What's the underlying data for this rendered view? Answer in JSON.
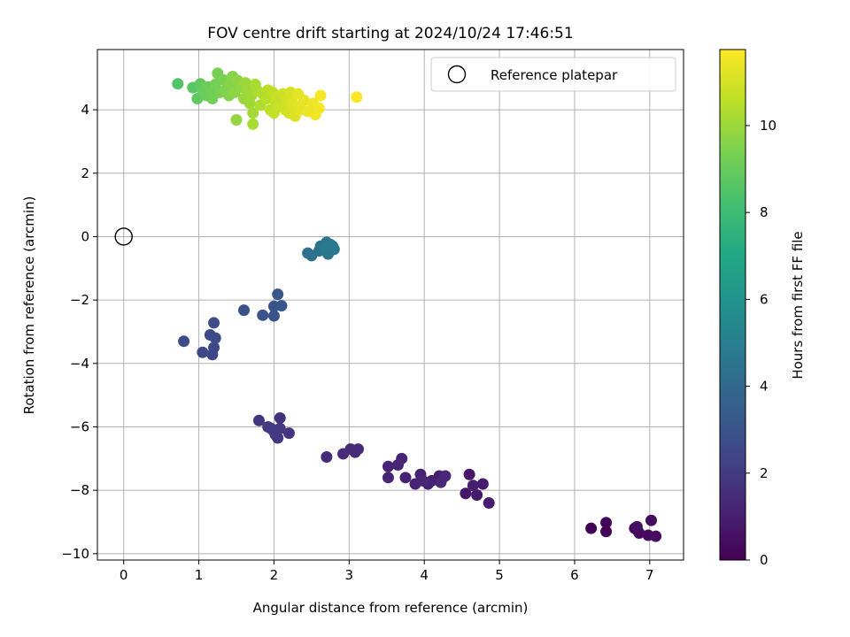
{
  "chart_data": {
    "type": "scatter",
    "title": "FOV centre drift starting at 2024/10/24 17:46:51",
    "xlabel": "Angular distance from reference (arcmin)",
    "ylabel": "Rotation from reference (arcmin)",
    "xlim": [
      -0.35,
      7.45
    ],
    "ylim": [
      -10.2,
      5.9
    ],
    "xticks": [
      "0",
      "1",
      "2",
      "3",
      "4",
      "5",
      "6",
      "7"
    ],
    "yticks": [
      "−10",
      "−8",
      "−6",
      "−4",
      "−2",
      "0",
      "2",
      "4"
    ],
    "grid": true,
    "legend": {
      "placement": "top-right",
      "entries": [
        "Reference platepar"
      ]
    },
    "reference_point": {
      "x": 0,
      "y": 0
    },
    "colorbar": {
      "label": "Hours from first FF file",
      "colormap": "viridis",
      "range": [
        0,
        11.75
      ],
      "ticks": [
        "0",
        "2",
        "4",
        "6",
        "8",
        "10"
      ]
    },
    "series": [
      {
        "points": [
          [
            6.22,
            -9.2,
            0.05
          ],
          [
            6.42,
            -9.02,
            0.1
          ],
          [
            6.42,
            -9.3,
            0.15
          ],
          [
            6.8,
            -9.2,
            0.2
          ],
          [
            6.84,
            -9.27,
            0.25
          ],
          [
            6.86,
            -9.35,
            0.3
          ],
          [
            6.98,
            -9.42,
            0.35
          ],
          [
            7.02,
            -8.95,
            0.4
          ],
          [
            7.08,
            -9.45,
            0.45
          ],
          [
            6.83,
            -9.15,
            0.5
          ],
          [
            4.55,
            -8.1,
            0.7
          ],
          [
            4.6,
            -7.5,
            0.75
          ],
          [
            4.7,
            -8.15,
            0.8
          ],
          [
            4.78,
            -7.8,
            0.85
          ],
          [
            4.86,
            -8.4,
            0.9
          ],
          [
            4.65,
            -7.85,
            0.95
          ],
          [
            4.2,
            -7.55,
            1.0
          ],
          [
            4.1,
            -7.7,
            1.02
          ],
          [
            4.25,
            -7.6,
            1.05
          ],
          [
            4.05,
            -7.8,
            1.08
          ],
          [
            3.95,
            -7.5,
            1.1
          ],
          [
            3.88,
            -7.8,
            1.12
          ],
          [
            3.75,
            -7.6,
            1.15
          ],
          [
            3.7,
            -7.0,
            1.18
          ],
          [
            3.65,
            -7.2,
            1.2
          ],
          [
            3.52,
            -7.25,
            1.22
          ],
          [
            3.52,
            -7.6,
            1.25
          ],
          [
            4.22,
            -7.75,
            1.28
          ],
          [
            4.28,
            -7.55,
            1.3
          ],
          [
            3.98,
            -7.7,
            1.32
          ],
          [
            3.02,
            -6.7,
            1.35
          ],
          [
            3.08,
            -6.8,
            1.38
          ],
          [
            3.12,
            -6.7,
            1.4
          ],
          [
            2.92,
            -6.85,
            1.42
          ],
          [
            2.7,
            -6.95,
            1.45
          ],
          [
            2.08,
            -5.72,
            1.7
          ],
          [
            2.2,
            -6.2,
            1.75
          ],
          [
            1.8,
            -5.8,
            1.8
          ],
          [
            2.05,
            -6.35,
            1.85
          ],
          [
            1.96,
            -6.05,
            1.9
          ],
          [
            2.02,
            -6.25,
            1.92
          ],
          [
            2.08,
            -6.05,
            1.95
          ],
          [
            1.92,
            -6.0,
            1.98
          ],
          [
            2.0,
            -6.15,
            2.0
          ],
          [
            1.18,
            -3.72,
            2.5
          ],
          [
            1.2,
            -3.5,
            2.55
          ],
          [
            1.05,
            -3.65,
            2.6
          ],
          [
            1.15,
            -3.1,
            2.62
          ],
          [
            1.22,
            -3.2,
            2.65
          ],
          [
            0.8,
            -3.3,
            2.7
          ],
          [
            1.2,
            -2.72,
            2.75
          ],
          [
            1.6,
            -2.32,
            2.9
          ],
          [
            1.85,
            -2.48,
            2.95
          ],
          [
            2.0,
            -2.5,
            3.0
          ],
          [
            2.0,
            -2.2,
            3.05
          ],
          [
            2.1,
            -2.18,
            3.1
          ],
          [
            2.05,
            -1.82,
            3.15
          ],
          [
            2.45,
            -0.52,
            4.3
          ],
          [
            2.5,
            -0.6,
            4.35
          ],
          [
            2.6,
            -0.45,
            4.4
          ],
          [
            2.62,
            -0.3,
            4.45
          ],
          [
            2.7,
            -0.18,
            4.5
          ],
          [
            2.72,
            -0.55,
            4.55
          ],
          [
            2.78,
            -0.3,
            4.6
          ],
          [
            2.8,
            -0.4,
            4.65
          ],
          [
            2.68,
            -0.38,
            4.7
          ],
          [
            2.75,
            -0.25,
            4.75
          ],
          [
            0.72,
            4.82,
            8.5
          ],
          [
            0.92,
            4.7,
            8.7
          ],
          [
            0.98,
            4.35,
            8.8
          ],
          [
            1.02,
            4.82,
            8.9
          ],
          [
            1.05,
            4.6,
            9.0
          ],
          [
            1.1,
            4.45,
            9.05
          ],
          [
            1.12,
            4.72,
            9.1
          ],
          [
            1.15,
            4.5,
            9.15
          ],
          [
            1.18,
            4.35,
            9.2
          ],
          [
            1.22,
            4.8,
            9.25
          ],
          [
            1.25,
            5.15,
            9.3
          ],
          [
            1.28,
            4.55,
            9.35
          ],
          [
            1.32,
            4.95,
            9.4
          ],
          [
            1.35,
            4.62,
            9.45
          ],
          [
            1.38,
            4.75,
            9.5
          ],
          [
            1.4,
            4.45,
            9.55
          ],
          [
            1.42,
            4.85,
            9.6
          ],
          [
            1.45,
            5.05,
            9.65
          ],
          [
            1.48,
            4.55,
            9.7
          ],
          [
            1.52,
            4.92,
            9.75
          ],
          [
            1.55,
            4.7,
            9.8
          ],
          [
            1.5,
            3.68,
            9.85
          ],
          [
            1.6,
            4.35,
            9.9
          ],
          [
            1.62,
            4.85,
            9.95
          ],
          [
            1.65,
            4.62,
            10.0
          ],
          [
            1.68,
            4.2,
            10.05
          ],
          [
            1.7,
            4.45,
            10.1
          ],
          [
            1.72,
            3.9,
            10.15
          ],
          [
            1.72,
            3.55,
            10.2
          ],
          [
            1.75,
            4.8,
            10.25
          ],
          [
            1.78,
            4.6,
            10.3
          ],
          [
            1.82,
            4.15,
            10.35
          ],
          [
            1.85,
            4.5,
            10.4
          ],
          [
            1.9,
            4.35,
            10.45
          ],
          [
            1.92,
            4.62,
            10.5
          ],
          [
            1.95,
            4.0,
            10.55
          ],
          [
            1.98,
            4.55,
            10.6
          ],
          [
            2.0,
            3.9,
            10.65
          ],
          [
            2.02,
            4.25,
            10.7
          ],
          [
            2.05,
            4.4,
            10.75
          ],
          [
            2.08,
            4.1,
            10.8
          ],
          [
            2.12,
            4.5,
            10.85
          ],
          [
            2.15,
            4.0,
            10.9
          ],
          [
            2.18,
            4.3,
            10.95
          ],
          [
            2.2,
            3.9,
            11.0
          ],
          [
            2.22,
            4.55,
            11.05
          ],
          [
            2.25,
            4.2,
            11.1
          ],
          [
            2.28,
            3.8,
            11.15
          ],
          [
            2.3,
            4.1,
            11.2
          ],
          [
            2.32,
            4.5,
            11.25
          ],
          [
            2.35,
            4.0,
            11.3
          ],
          [
            2.4,
            4.3,
            11.35
          ],
          [
            2.45,
            3.95,
            11.4
          ],
          [
            2.52,
            4.2,
            11.45
          ],
          [
            2.55,
            3.85,
            11.5
          ],
          [
            2.6,
            4.05,
            11.55
          ],
          [
            2.62,
            4.45,
            11.6
          ],
          [
            3.1,
            4.4,
            11.7
          ]
        ]
      }
    ]
  }
}
